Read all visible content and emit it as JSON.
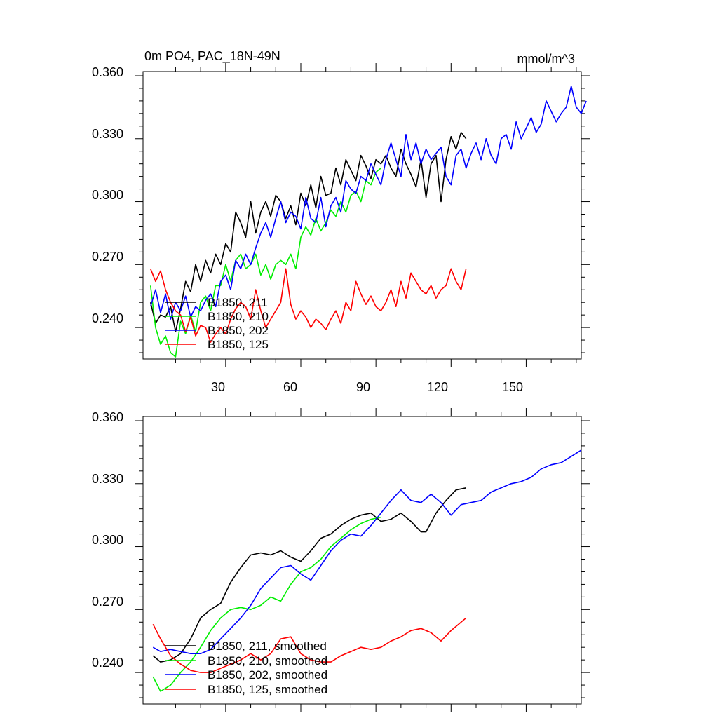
{
  "colors": {
    "axis": "#000000",
    "run_211": "#000000",
    "run_210": "#00ee00",
    "run_202": "#0000ff",
    "run_125": "#ff0000"
  },
  "chart_data": [
    {
      "type": "line",
      "title": "0m PO4, PAC_18N-49N",
      "units": "mmol/m^3",
      "xlabel": "",
      "ylabel": "",
      "xlim": [
        0,
        175
      ],
      "ylim": [
        0.225,
        0.362
      ],
      "xticks": [
        30,
        60,
        90,
        120,
        150
      ],
      "xtick_labels": [
        "30",
        "60",
        "90",
        "120",
        "150"
      ],
      "yticks": [
        0.24,
        0.27,
        0.3,
        0.33,
        0.36
      ],
      "ytick_labels": [
        "0.240",
        "0.270",
        "0.300",
        "0.330",
        "0.360"
      ],
      "grid": false,
      "legend": "bottom-left",
      "series": [
        {
          "name": "B1850, 211",
          "color": "#000000",
          "x": [
            0,
            2,
            4,
            6,
            8,
            10,
            12,
            14,
            16,
            18,
            20,
            22,
            24,
            26,
            28,
            30,
            32,
            34,
            36,
            38,
            40,
            42,
            44,
            46,
            48,
            50,
            52,
            54,
            56,
            58,
            60,
            62,
            64,
            66,
            68,
            70,
            72,
            74,
            76,
            78,
            80,
            82,
            84,
            86,
            88,
            90,
            92,
            94,
            96,
            98,
            100,
            102,
            104,
            106,
            108,
            110,
            112,
            114,
            116,
            118,
            120,
            122,
            124,
            126
          ],
          "y": [
            0.252,
            0.242,
            0.246,
            0.245,
            0.25,
            0.238,
            0.249,
            0.262,
            0.257,
            0.27,
            0.262,
            0.272,
            0.266,
            0.275,
            0.27,
            0.28,
            0.276,
            0.295,
            0.29,
            0.283,
            0.3,
            0.285,
            0.295,
            0.3,
            0.293,
            0.303,
            0.3,
            0.292,
            0.298,
            0.289,
            0.304,
            0.298,
            0.308,
            0.297,
            0.312,
            0.303,
            0.304,
            0.316,
            0.308,
            0.32,
            0.315,
            0.31,
            0.322,
            0.317,
            0.311,
            0.32,
            0.318,
            0.322,
            0.316,
            0.312,
            0.325,
            0.318,
            0.313,
            0.307,
            0.32,
            0.302,
            0.318,
            0.322,
            0.3,
            0.32,
            0.331,
            0.325,
            0.333,
            0.33
          ]
        },
        {
          "name": "B1850, 210",
          "color": "#00ee00",
          "x": [
            0,
            2,
            4,
            6,
            8,
            10,
            12,
            14,
            16,
            18,
            20,
            22,
            24,
            26,
            28,
            30,
            32,
            34,
            36,
            38,
            40,
            42,
            44,
            46,
            48,
            50,
            52,
            54,
            56,
            58,
            60,
            62,
            64,
            66,
            68,
            70,
            72,
            74,
            76,
            78,
            80,
            82,
            84,
            86,
            88,
            90,
            92
          ],
          "y": [
            0.26,
            0.24,
            0.232,
            0.236,
            0.228,
            0.226,
            0.243,
            0.237,
            0.246,
            0.238,
            0.252,
            0.255,
            0.248,
            0.26,
            0.26,
            0.27,
            0.262,
            0.272,
            0.275,
            0.268,
            0.27,
            0.275,
            0.265,
            0.27,
            0.263,
            0.27,
            0.272,
            0.27,
            0.275,
            0.268,
            0.283,
            0.288,
            0.284,
            0.292,
            0.286,
            0.29,
            0.296,
            0.293,
            0.3,
            0.295,
            0.303,
            0.305,
            0.3,
            0.31,
            0.308,
            0.314,
            0.316
          ]
        },
        {
          "name": "B1850, 202",
          "color": "#0000ff",
          "x": [
            0,
            2,
            4,
            6,
            8,
            10,
            12,
            14,
            16,
            18,
            20,
            22,
            24,
            26,
            28,
            30,
            32,
            34,
            36,
            38,
            40,
            42,
            44,
            46,
            48,
            50,
            52,
            54,
            56,
            58,
            60,
            62,
            64,
            66,
            68,
            70,
            72,
            74,
            76,
            78,
            80,
            82,
            84,
            86,
            88,
            90,
            92,
            94,
            96,
            98,
            100,
            102,
            104,
            106,
            108,
            110,
            112,
            114,
            116,
            118,
            120,
            122,
            124,
            126,
            128,
            130,
            132,
            134,
            136,
            138,
            140,
            142,
            144,
            146,
            148,
            150,
            152,
            154,
            156,
            158,
            160,
            162,
            164,
            166,
            168,
            170,
            172,
            174
          ],
          "y": [
            0.25,
            0.258,
            0.247,
            0.256,
            0.244,
            0.252,
            0.248,
            0.255,
            0.245,
            0.25,
            0.248,
            0.253,
            0.256,
            0.25,
            0.262,
            0.265,
            0.258,
            0.272,
            0.268,
            0.275,
            0.27,
            0.278,
            0.285,
            0.29,
            0.283,
            0.292,
            0.3,
            0.29,
            0.295,
            0.293,
            0.287,
            0.302,
            0.292,
            0.29,
            0.302,
            0.288,
            0.298,
            0.302,
            0.295,
            0.31,
            0.306,
            0.304,
            0.312,
            0.31,
            0.318,
            0.313,
            0.308,
            0.32,
            0.328,
            0.32,
            0.312,
            0.332,
            0.32,
            0.328,
            0.318,
            0.325,
            0.32,
            0.323,
            0.326,
            0.312,
            0.308,
            0.322,
            0.325,
            0.316,
            0.323,
            0.328,
            0.32,
            0.33,
            0.322,
            0.318,
            0.33,
            0.332,
            0.325,
            0.338,
            0.33,
            0.335,
            0.34,
            0.333,
            0.337,
            0.348,
            0.343,
            0.338,
            0.342,
            0.345,
            0.355,
            0.345,
            0.342,
            0.348
          ]
        },
        {
          "name": "B1850, 125",
          "color": "#ff0000",
          "x": [
            0,
            2,
            4,
            6,
            8,
            10,
            12,
            14,
            16,
            18,
            20,
            22,
            24,
            26,
            28,
            30,
            32,
            34,
            36,
            38,
            40,
            42,
            44,
            46,
            48,
            50,
            52,
            54,
            56,
            58,
            60,
            62,
            64,
            66,
            68,
            70,
            72,
            74,
            76,
            78,
            80,
            82,
            84,
            86,
            88,
            90,
            92,
            94,
            96,
            98,
            100,
            102,
            104,
            106,
            108,
            110,
            112,
            114,
            116,
            118,
            120,
            122,
            124,
            126
          ],
          "y": [
            0.268,
            0.262,
            0.267,
            0.258,
            0.252,
            0.248,
            0.246,
            0.238,
            0.245,
            0.236,
            0.241,
            0.24,
            0.233,
            0.237,
            0.24,
            0.237,
            0.244,
            0.249,
            0.252,
            0.25,
            0.244,
            0.258,
            0.248,
            0.24,
            0.244,
            0.248,
            0.252,
            0.268,
            0.251,
            0.244,
            0.248,
            0.245,
            0.24,
            0.244,
            0.242,
            0.239,
            0.244,
            0.248,
            0.242,
            0.252,
            0.248,
            0.262,
            0.256,
            0.251,
            0.255,
            0.25,
            0.248,
            0.252,
            0.258,
            0.25,
            0.262,
            0.254,
            0.266,
            0.262,
            0.258,
            0.256,
            0.26,
            0.254,
            0.258,
            0.26,
            0.268,
            0.262,
            0.258,
            0.268
          ]
        }
      ],
      "legend_entries": [
        "B1850, 211",
        "B1850, 210",
        "B1850, 202",
        "B1850, 125"
      ]
    },
    {
      "type": "line",
      "title": "",
      "xlabel": "",
      "ylabel": "",
      "xlim": [
        0,
        175
      ],
      "ylim": [
        0.225,
        0.362
      ],
      "xticks": [
        30,
        60,
        90,
        120,
        150
      ],
      "yticks": [
        0.24,
        0.27,
        0.3,
        0.33,
        0.36
      ],
      "ytick_labels": [
        "0.240",
        "0.270",
        "0.300",
        "0.330",
        "0.360"
      ],
      "grid": false,
      "legend": "bottom-left",
      "series": [
        {
          "name": "B1850, 211, smoothed",
          "color": "#000000",
          "x": [
            1,
            4,
            8,
            12,
            16,
            20,
            24,
            28,
            32,
            36,
            40,
            44,
            48,
            52,
            56,
            60,
            64,
            68,
            72,
            76,
            80,
            84,
            88,
            92,
            96,
            100,
            104,
            108,
            110,
            114,
            118,
            122,
            126
          ],
          "y": [
            0.248,
            0.245,
            0.246,
            0.249,
            0.256,
            0.266,
            0.27,
            0.273,
            0.283,
            0.29,
            0.296,
            0.297,
            0.296,
            0.298,
            0.295,
            0.293,
            0.298,
            0.304,
            0.306,
            0.31,
            0.313,
            0.315,
            0.316,
            0.312,
            0.313,
            0.316,
            0.312,
            0.307,
            0.307,
            0.316,
            0.322,
            0.327,
            0.328
          ]
        },
        {
          "name": "B1850, 210, smoothed",
          "color": "#00ee00",
          "x": [
            1,
            4,
            8,
            12,
            16,
            20,
            24,
            28,
            32,
            36,
            40,
            44,
            48,
            52,
            56,
            60,
            64,
            68,
            72,
            76,
            80,
            84,
            88,
            92
          ],
          "y": [
            0.238,
            0.231,
            0.234,
            0.24,
            0.245,
            0.252,
            0.26,
            0.266,
            0.27,
            0.271,
            0.27,
            0.272,
            0.276,
            0.274,
            0.282,
            0.288,
            0.29,
            0.294,
            0.3,
            0.304,
            0.308,
            0.311,
            0.313,
            0.314
          ]
        },
        {
          "name": "B1850, 202, smoothed",
          "color": "#0000ff",
          "x": [
            1,
            4,
            8,
            12,
            16,
            20,
            24,
            28,
            32,
            36,
            40,
            44,
            48,
            52,
            56,
            60,
            64,
            68,
            72,
            76,
            80,
            84,
            88,
            92,
            96,
            100,
            104,
            108,
            112,
            116,
            120,
            124,
            128,
            132,
            136,
            140,
            144,
            148,
            152,
            156,
            160,
            164,
            168,
            172
          ],
          "y": [
            0.252,
            0.25,
            0.251,
            0.25,
            0.249,
            0.249,
            0.251,
            0.256,
            0.261,
            0.266,
            0.272,
            0.28,
            0.285,
            0.29,
            0.291,
            0.287,
            0.284,
            0.291,
            0.298,
            0.303,
            0.306,
            0.305,
            0.31,
            0.316,
            0.322,
            0.327,
            0.322,
            0.321,
            0.325,
            0.321,
            0.315,
            0.32,
            0.321,
            0.322,
            0.326,
            0.328,
            0.33,
            0.331,
            0.333,
            0.337,
            0.339,
            0.34,
            0.343,
            0.346
          ]
        },
        {
          "name": "B1850, 125, smoothed",
          "color": "#ff0000",
          "x": [
            1,
            4,
            8,
            12,
            16,
            20,
            24,
            28,
            32,
            36,
            40,
            44,
            48,
            52,
            56,
            60,
            64,
            68,
            72,
            76,
            80,
            84,
            88,
            92,
            96,
            100,
            104,
            108,
            112,
            116,
            120,
            124,
            126
          ],
          "y": [
            0.263,
            0.256,
            0.248,
            0.244,
            0.241,
            0.24,
            0.24,
            0.242,
            0.244,
            0.246,
            0.249,
            0.246,
            0.249,
            0.256,
            0.257,
            0.249,
            0.246,
            0.245,
            0.245,
            0.248,
            0.25,
            0.252,
            0.251,
            0.252,
            0.255,
            0.257,
            0.26,
            0.261,
            0.259,
            0.255,
            0.26,
            0.264,
            0.266
          ]
        }
      ],
      "legend_entries": [
        "B1850, 211, smoothed",
        "B1850, 210, smoothed",
        "B1850, 202, smoothed",
        "B1850, 125, smoothed"
      ]
    }
  ]
}
